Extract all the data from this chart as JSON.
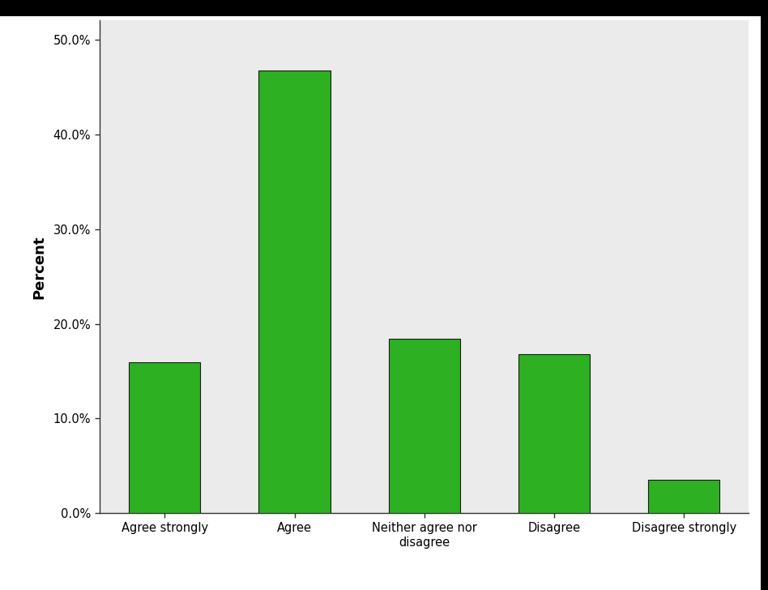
{
  "categories": [
    "Agree strongly",
    "Agree",
    "Neither agree nor\ndisagree",
    "Disagree",
    "Disagree strongly"
  ],
  "values": [
    15.9,
    46.7,
    18.4,
    16.8,
    3.5
  ],
  "bar_color": "#2db022",
  "bar_edge_color": "#1a1a1a",
  "bar_edge_width": 0.8,
  "ylabel": "Percent",
  "ylim": [
    0,
    52
  ],
  "yticks": [
    0,
    10,
    20,
    30,
    40,
    50
  ],
  "ytick_labels": [
    "0.0%",
    "10.0%",
    "20.0%",
    "30.0%",
    "40.0%",
    "50.0%"
  ],
  "plot_bg_color": "#ebebeb",
  "outer_bg_color": "#ffffff",
  "ylabel_fontsize": 13,
  "ylabel_fontweight": "bold",
  "tick_fontsize": 10.5,
  "bar_width": 0.55,
  "spine_color": "#555555",
  "top_bar_color": "#000000",
  "top_bar_height": 0.028,
  "right_bar_color": "#000000",
  "right_bar_width": 0.009
}
